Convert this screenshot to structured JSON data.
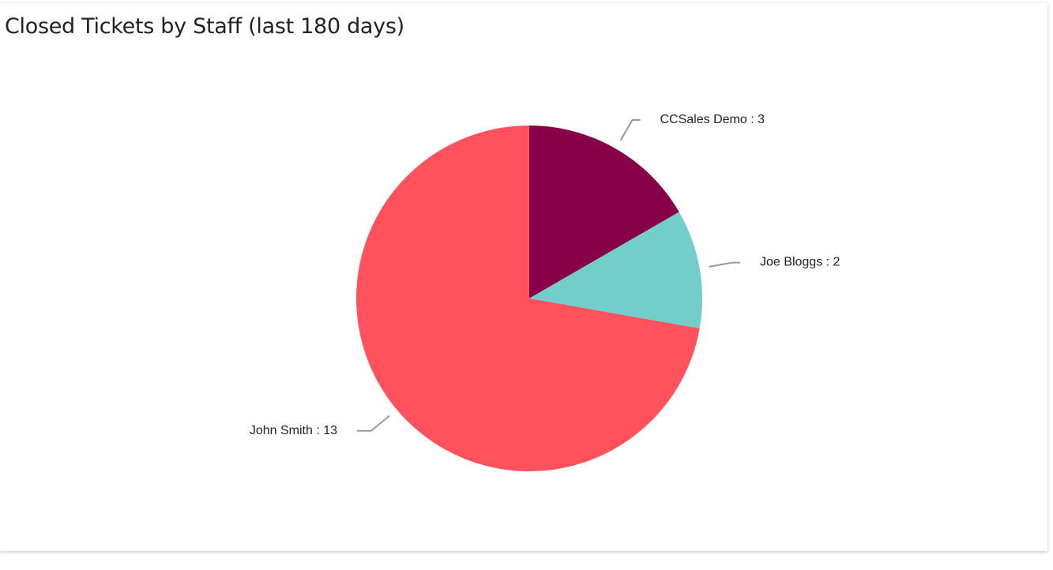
{
  "chart_data": {
    "type": "pie",
    "title": "Closed Tickets by Staff (last 180 days)",
    "categories": [
      "CCSales Demo",
      "Joe Bloggs",
      "John Smith"
    ],
    "values": [
      3,
      2,
      13
    ],
    "colors": [
      "#870048",
      "#72cdcb",
      "#ff525c"
    ],
    "label_separator": " : "
  }
}
